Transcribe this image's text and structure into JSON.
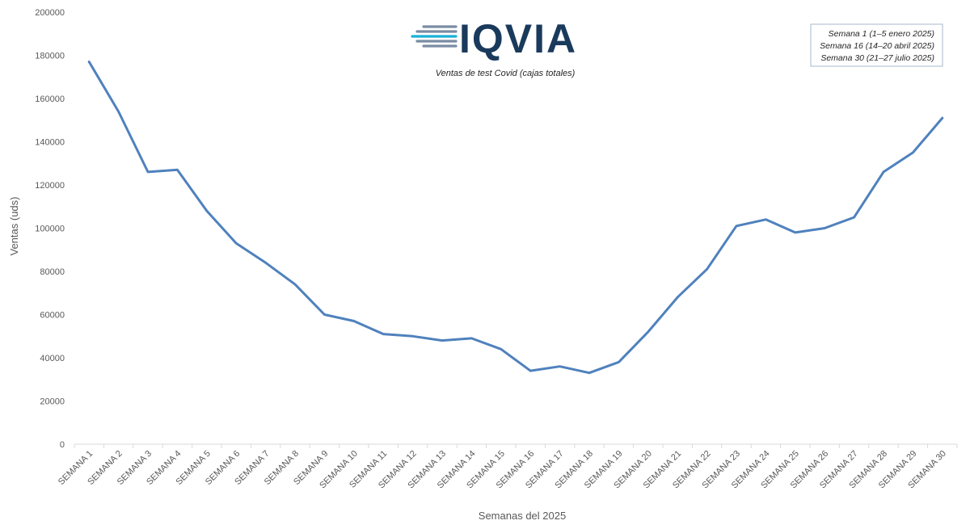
{
  "chart_data": {
    "type": "line",
    "title": "",
    "subtitle": "Ventas de test Covid (cajas totales)",
    "xlabel": "Semanas del 2025",
    "ylabel": "Ventas (uds)",
    "ylim": [
      0,
      200000
    ],
    "yticks": [
      0,
      20000,
      40000,
      60000,
      80000,
      100000,
      120000,
      140000,
      160000,
      180000,
      200000
    ],
    "grid": false,
    "categories": [
      "SEMANA 1",
      "SEMANA 2",
      "SEMANA 3",
      "SEMANA 4",
      "SEMANA 5",
      "SEMANA 6",
      "SEMANA 7",
      "SEMANA 8",
      "SEMANA 9",
      "SEMANA 10",
      "SEMANA 11",
      "SEMANA 12",
      "SEMANA 13",
      "SEMANA 14",
      "SEMANA 15",
      "SEMANA 16",
      "SEMANA 17",
      "SEMANA 18",
      "SEMANA 19",
      "SEMANA 20",
      "SEMANA 21",
      "SEMANA 22",
      "SEMANA 23",
      "SEMANA 24",
      "SEMANA 25",
      "SEMANA 26",
      "SEMANA 27",
      "SEMANA 28",
      "SEMANA 29",
      "SEMANA 30"
    ],
    "series": [
      {
        "values": [
          177000,
          154000,
          126000,
          127000,
          108000,
          93000,
          84000,
          74000,
          60000,
          57000,
          51000,
          50000,
          48000,
          49000,
          44000,
          34000,
          36000,
          33000,
          38000,
          52000,
          68000,
          81000,
          101000,
          104000,
          98000,
          100000,
          105000,
          126000,
          135000,
          151000
        ],
        "color": "#4f81bd"
      }
    ],
    "legend_placement": "top-right",
    "legend_entries": [
      "Semana 1 (1–5 enero 2025)",
      "Semana 16 (14–20 abril 2025)",
      "Semana 30 (21–27 julio 2025)"
    ]
  },
  "logo": {
    "text": "IQVIA",
    "color": "#1a3a5c",
    "accent_color": "#19b1d8",
    "stripe_color": "#7a8ca3"
  }
}
